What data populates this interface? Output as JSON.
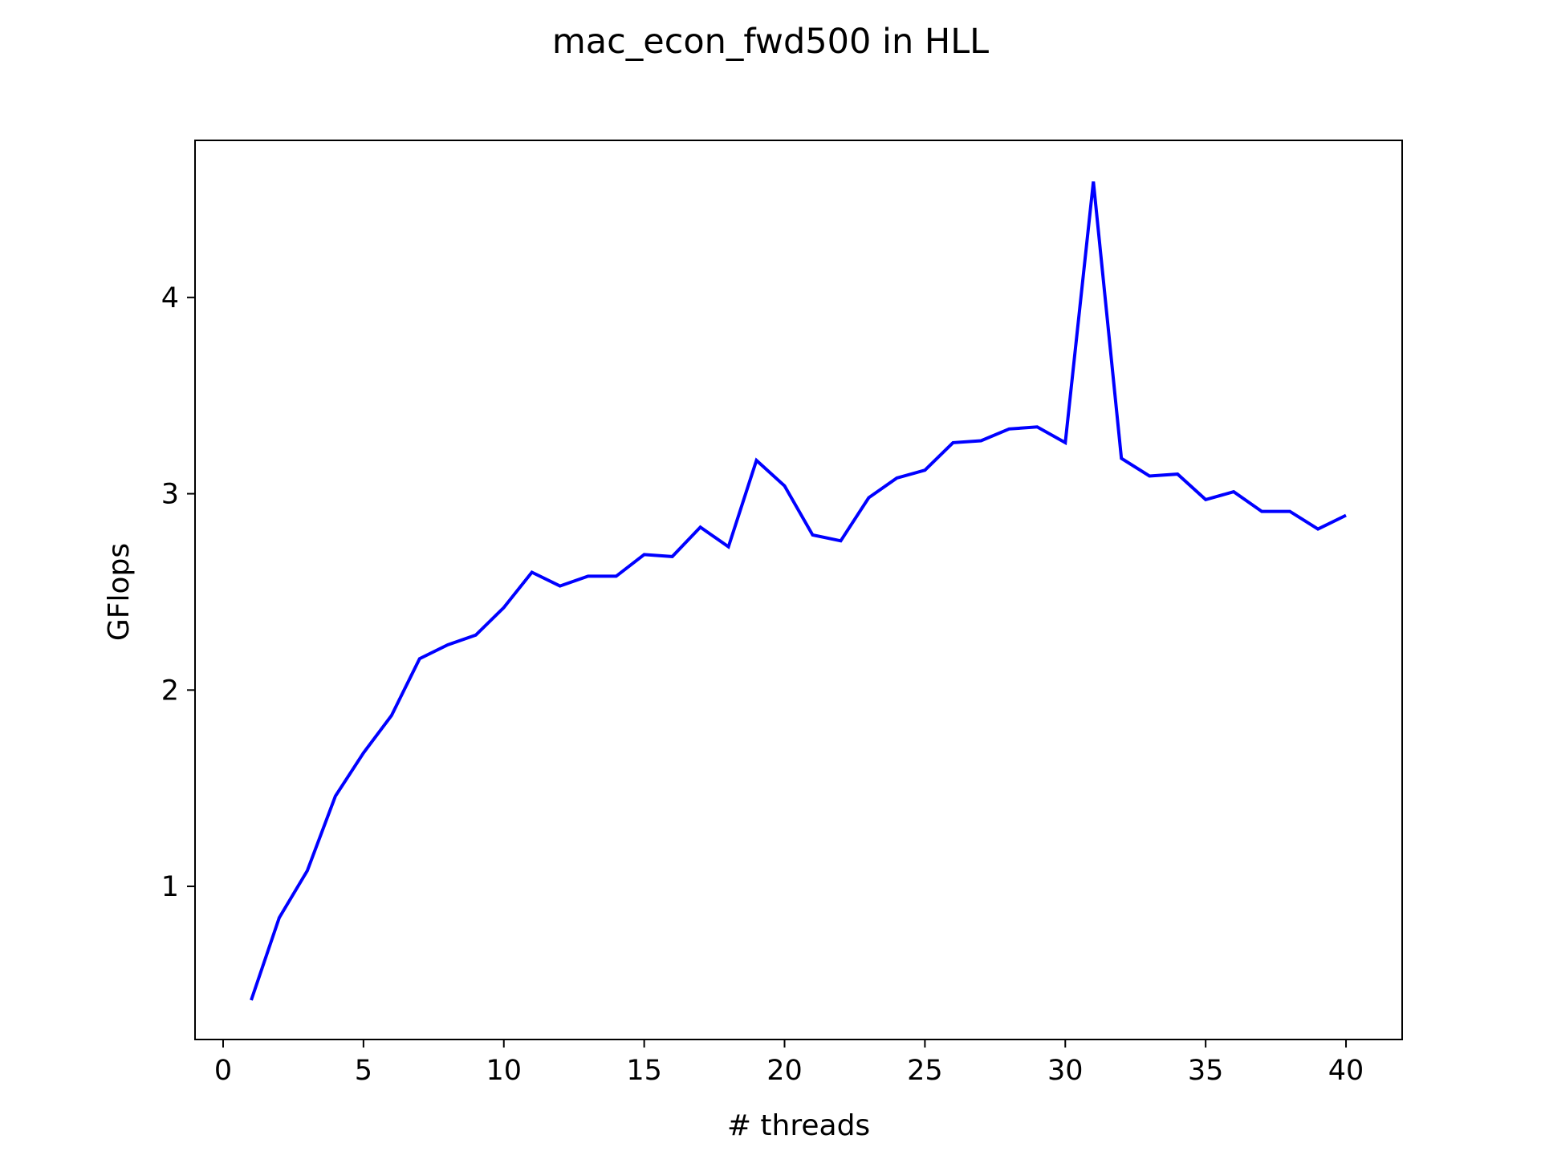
{
  "chart_data": {
    "type": "line",
    "title": "mac_econ_fwd500 in HLL",
    "xlabel": "# threads",
    "ylabel": "GFlops",
    "xlim": [
      -1,
      42
    ],
    "ylim": [
      0.22,
      4.8
    ],
    "xticks": [
      0,
      5,
      10,
      15,
      20,
      25,
      30,
      35,
      40
    ],
    "yticks": [
      1,
      2,
      3,
      4
    ],
    "grid": false,
    "legend": "none",
    "series": [
      {
        "color": "#0000ff",
        "x": [
          1,
          2,
          3,
          4,
          5,
          6,
          7,
          8,
          9,
          10,
          11,
          12,
          13,
          14,
          15,
          16,
          17,
          18,
          19,
          20,
          21,
          22,
          23,
          24,
          25,
          26,
          27,
          28,
          29,
          30,
          31,
          32,
          33,
          34,
          35,
          36,
          37,
          38,
          39,
          40
        ],
        "values": [
          0.42,
          0.84,
          1.08,
          1.46,
          1.68,
          1.87,
          2.16,
          2.23,
          2.28,
          2.42,
          2.6,
          2.53,
          2.58,
          2.58,
          2.69,
          2.68,
          2.83,
          2.73,
          3.17,
          3.04,
          2.79,
          2.76,
          2.98,
          3.08,
          3.12,
          3.26,
          3.27,
          3.33,
          3.34,
          3.26,
          4.59,
          3.18,
          3.09,
          3.1,
          2.97,
          3.01,
          2.91,
          2.91,
          2.82,
          2.89
        ]
      }
    ]
  }
}
